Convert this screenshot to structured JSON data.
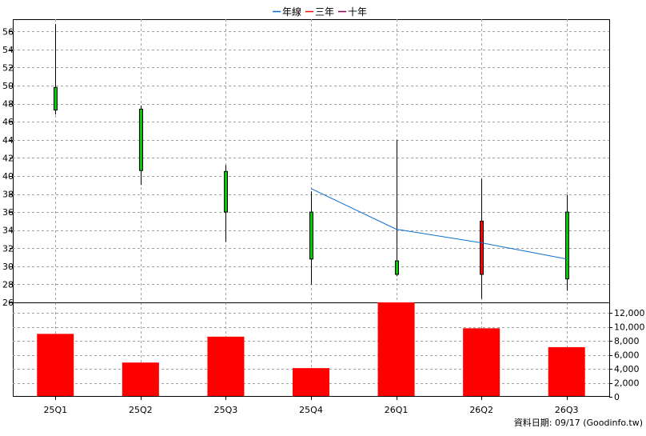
{
  "legend": {
    "items": [
      {
        "label": "年線",
        "color": "#0b6fd1"
      },
      {
        "label": "三年",
        "color": "#ff0000"
      },
      {
        "label": "十年",
        "color": "#8b004b"
      }
    ]
  },
  "footer": {
    "source_text": "資料日期: 09/17  (Goodinfo.tw)"
  },
  "chart_data": [
    {
      "type": "candlestick",
      "categories": [
        "25Q1",
        "25Q2",
        "25Q3",
        "25Q4",
        "26Q1",
        "26Q2",
        "26Q3"
      ],
      "ylim": [
        26,
        57
      ],
      "yticks": [
        26,
        28,
        30,
        32,
        34,
        36,
        38,
        40,
        42,
        44,
        46,
        48,
        50,
        52,
        54,
        56
      ],
      "grid": true,
      "ohlc": [
        {
          "open": 47.3,
          "high": 56.8,
          "low": 46.8,
          "close": 49.8
        },
        {
          "open": 40.6,
          "high": 47.8,
          "low": 39.0,
          "close": 47.4
        },
        {
          "open": 36.0,
          "high": 41.2,
          "low": 32.7,
          "close": 40.5
        },
        {
          "open": 30.8,
          "high": 38.3,
          "low": 28.0,
          "close": 36.0
        },
        {
          "open": 29.1,
          "high": 44.0,
          "low": 28.9,
          "close": 30.6
        },
        {
          "open": 35.0,
          "high": 39.7,
          "low": 26.4,
          "close": 29.1
        },
        {
          "open": 28.6,
          "high": 37.9,
          "low": 27.3,
          "close": 36.0
        }
      ],
      "colors": {
        "up": "#00cc00",
        "down": "#ff0000"
      },
      "series": [
        {
          "name": "年線",
          "color": "#0b6fd1",
          "values": [
            null,
            null,
            null,
            38.6,
            34.1,
            32.6,
            30.8
          ]
        }
      ]
    },
    {
      "type": "bar",
      "categories": [
        "25Q1",
        "25Q2",
        "25Q3",
        "25Q4",
        "26Q1",
        "26Q2",
        "26Q3"
      ],
      "values": [
        9000,
        4900,
        8600,
        4100,
        13500,
        9800,
        7100
      ],
      "ylim": [
        0,
        13500
      ],
      "yticks": [
        0,
        2000,
        4000,
        6000,
        8000,
        10000,
        12000
      ],
      "ytick_labels": [
        "0",
        "2,000",
        "4,000",
        "6,000",
        "8,000",
        "10,000",
        "12,000"
      ],
      "color": "#ff0000",
      "grid": true
    }
  ]
}
